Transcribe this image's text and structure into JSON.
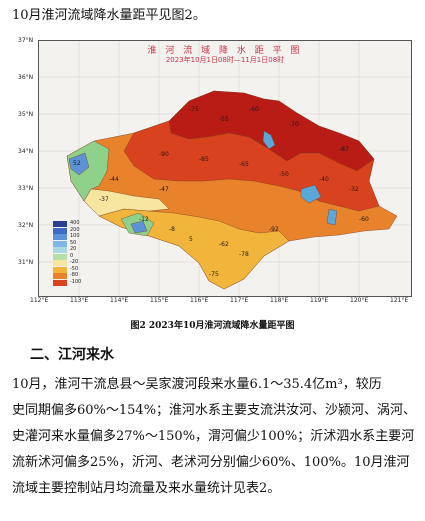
{
  "intro_line": "10月淮河流域降水量距平见图2。",
  "map": {
    "title": "淮 河 流 域 降 水 距 平 图",
    "subtitle": "2023年10月1日08时—11月1日08时",
    "lat_ticks": [
      "37°N",
      "36°N",
      "35°N",
      "34°N",
      "33°N",
      "32°N",
      "31°N"
    ],
    "lon_ticks": [
      "112°E",
      "113°E",
      "114°E",
      "115°E",
      "116°E",
      "117°E",
      "118°E",
      "119°E",
      "120°E",
      "121°E"
    ],
    "legend": [
      {
        "label": "400",
        "color": "#2a3f8f"
      },
      {
        "label": "200",
        "color": "#3e6cc4"
      },
      {
        "label": "100",
        "color": "#5b93d6"
      },
      {
        "label": "50",
        "color": "#7fb7e4"
      },
      {
        "label": "20",
        "color": "#a9d8e2"
      },
      {
        "label": "0",
        "color": "#b7e0a8"
      },
      {
        "label": "-20",
        "color": "#f7e6a0"
      },
      {
        "label": "-50",
        "color": "#f2b53b"
      },
      {
        "label": "-80",
        "color": "#e8822b"
      },
      {
        "label": "-100",
        "color": "#d8421e"
      }
    ],
    "region_colors": {
      "deep_red": "#b91c15",
      "red": "#d8421e",
      "orange": "#e8822b",
      "yellow": "#f2b53b",
      "pale_yellow": "#f7e6a0",
      "green": "#8fd18a",
      "blue": "#5b93d6",
      "lake": "#5aa7d8"
    },
    "sample_values": [
      "52",
      "-47",
      "-75",
      "-55",
      "-60",
      "-70",
      "-87",
      "-90",
      "-85",
      "-65",
      "-50",
      "-40",
      "-32",
      "-12",
      "-8",
      "5",
      "-62",
      "-78",
      "-92",
      "-44",
      "-37",
      "-60",
      "-75"
    ]
  },
  "caption": "图2   2023年10月淮河流域降水量距平图",
  "section_heading": "二、江河来水",
  "paragraph_lines": [
    "10月，淮河干流息县～吴家渡河段来水量6.1～35.4亿m³，较历",
    "史同期偏多60%～154%；淮河水系主要支流洪汝河、沙颍河、涡河、",
    "史灌河来水量偏多27%～150%，渭河偏少100%；沂沭泗水系主要河",
    "流新沭河偏多25%，沂河、老沭河分别偏少60%、100%。10月淮河",
    "流域主要控制站月均流量及来水量统计见表2。"
  ]
}
